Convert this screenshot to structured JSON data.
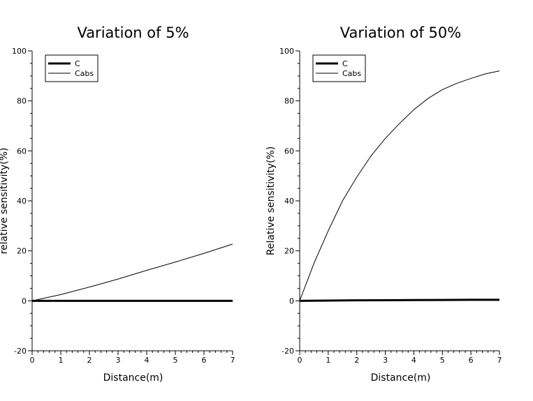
{
  "chart_data": [
    {
      "type": "line",
      "title": "Variation of 5%",
      "xlabel": "Distance(m)",
      "ylabel": "relative sensitivity(%)",
      "xlim": [
        0,
        7
      ],
      "ylim": [
        -20,
        100
      ],
      "xticks": [
        0,
        1,
        2,
        3,
        4,
        5,
        6,
        7
      ],
      "yticks": [
        -20,
        0,
        20,
        40,
        60,
        80,
        100
      ],
      "legend_position": "top-left",
      "series": [
        {
          "name": "C",
          "style": "thick",
          "x": [
            0,
            1,
            2,
            3,
            4,
            5,
            6,
            7
          ],
          "y": [
            0,
            0,
            0,
            0,
            0,
            0,
            0,
            0
          ]
        },
        {
          "name": "Cabs",
          "style": "thin",
          "x": [
            0,
            1,
            2,
            3,
            4,
            5,
            6,
            7
          ],
          "y": [
            0,
            2.5,
            5.5,
            8.7,
            12.2,
            15.5,
            19.0,
            22.7
          ]
        }
      ]
    },
    {
      "type": "line",
      "title": "Variation of 50%",
      "xlabel": "Distance(m)",
      "ylabel": "Relative sensitivity(%)",
      "xlim": [
        0,
        7
      ],
      "ylim": [
        -20,
        100
      ],
      "xticks": [
        0,
        1,
        2,
        3,
        4,
        5,
        6,
        7
      ],
      "yticks": [
        -20,
        0,
        20,
        40,
        60,
        80,
        100
      ],
      "legend_position": "top-left",
      "series": [
        {
          "name": "C",
          "style": "thick",
          "x": [
            0,
            1,
            2,
            3,
            4,
            5,
            6,
            7
          ],
          "y": [
            0,
            0.1,
            0.2,
            0.25,
            0.3,
            0.35,
            0.4,
            0.4
          ]
        },
        {
          "name": "Cabs",
          "style": "thin",
          "x": [
            0,
            0.5,
            1,
            1.5,
            2,
            2.5,
            3,
            3.5,
            4,
            4.5,
            5,
            5.5,
            6,
            6.5,
            7
          ],
          "y": [
            0,
            15,
            28,
            40,
            49.5,
            58,
            65,
            71,
            76.5,
            81,
            84.5,
            87,
            89,
            90.8,
            92
          ]
        }
      ]
    }
  ]
}
